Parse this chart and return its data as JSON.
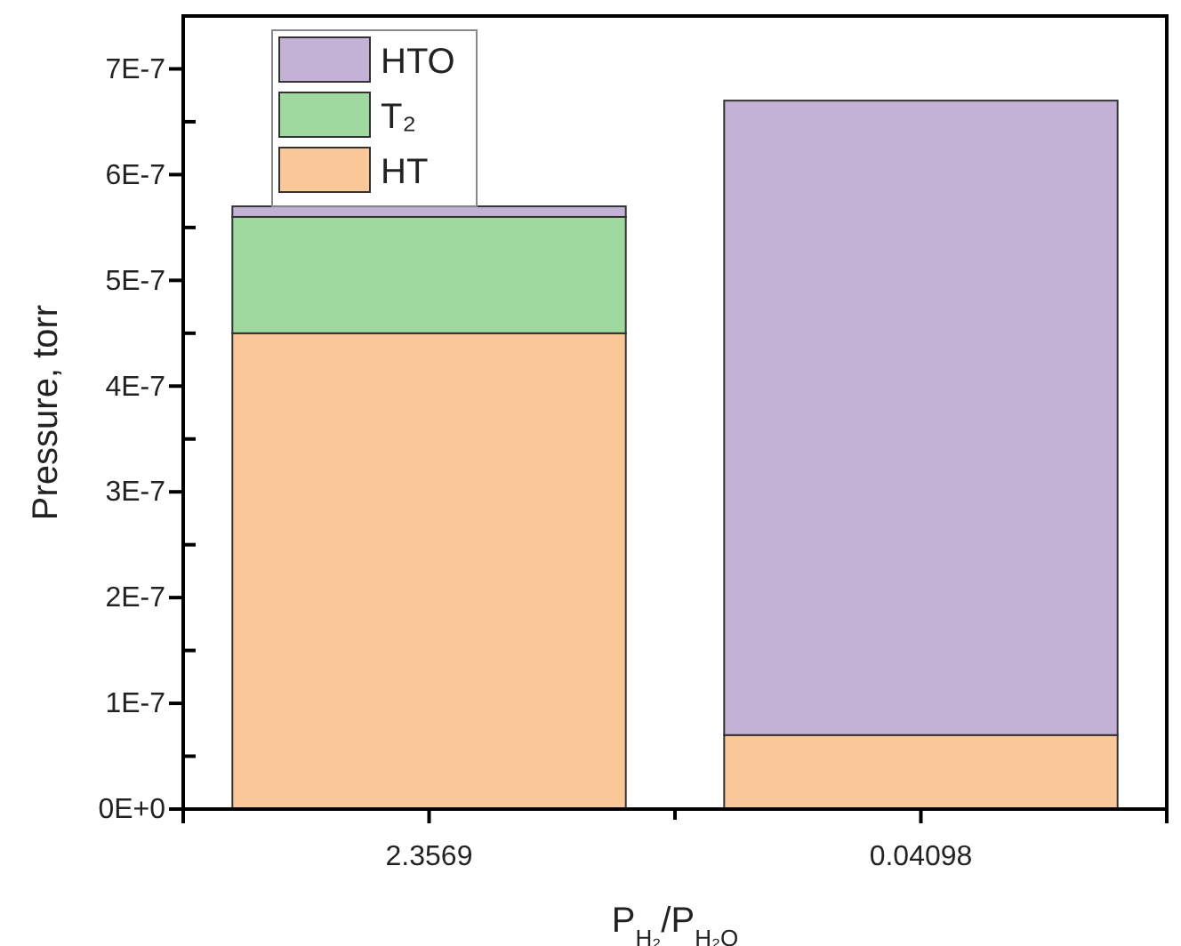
{
  "chart_data": {
    "type": "bar",
    "stacked": true,
    "categories": [
      "2.3569",
      "0.04098"
    ],
    "xlabel": "P$_{H₂}$/P$_{H₂O}$",
    "ylabel": "Pressure, torr",
    "series": [
      {
        "name": "HT",
        "color": "#fac898",
        "values": [
          4.5e-07,
          7e-08
        ]
      },
      {
        "name": "T₂",
        "color": "#a0d99f",
        "values": [
          1.1e-07,
          0
        ]
      },
      {
        "name": "HTO",
        "color": "#c3b1d6",
        "values": [
          1e-08,
          6e-07
        ]
      }
    ],
    "ylim": [
      0,
      7.5e-07
    ],
    "yticks": [
      {
        "value": 0,
        "label": "0E+0"
      },
      {
        "value": 5e-08,
        "label": null
      },
      {
        "value": 1e-07,
        "label": "1E-7"
      },
      {
        "value": 1.5e-07,
        "label": null
      },
      {
        "value": 2e-07,
        "label": "2E-7"
      },
      {
        "value": 2.5e-07,
        "label": null
      },
      {
        "value": 3e-07,
        "label": "3E-7"
      },
      {
        "value": 3.5e-07,
        "label": null
      },
      {
        "value": 4e-07,
        "label": "4E-7"
      },
      {
        "value": 4.5e-07,
        "label": null
      },
      {
        "value": 5e-07,
        "label": "5E-7"
      },
      {
        "value": 5.5e-07,
        "label": null
      },
      {
        "value": 6e-07,
        "label": "6E-7"
      },
      {
        "value": 6.5e-07,
        "label": null
      },
      {
        "value": 7e-07,
        "label": "7E-7"
      }
    ],
    "legend": "top left",
    "grid": false
  }
}
